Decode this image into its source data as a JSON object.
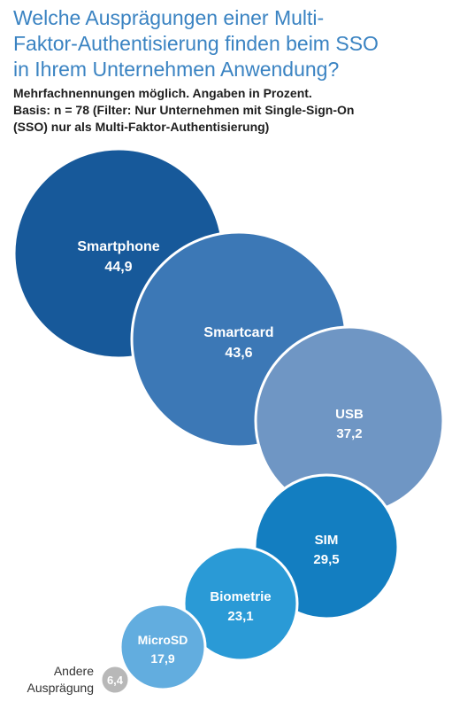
{
  "title_lines": [
    "Welche Ausprägungen einer Multi-",
    "Faktor-Authentisierung finden beim SSO",
    "in Ihrem Unternehmen Anwendung?"
  ],
  "subtitle_lines": [
    "Mehrfachnennungen möglich. Angaben in Prozent.",
    "Basis: n = 78 (Filter: Nur Unternehmen mit Single-Sign-On",
    "(SSO) nur als Multi-Faktor-Authentisierung)"
  ],
  "chart_data": {
    "type": "bubble",
    "title": "Welche Ausprägungen einer Multi-Faktor-Authentisierung finden beim SSO in Ihrem Unternehmen Anwendung?",
    "unit": "Prozent",
    "series": [
      {
        "label": "Smartphone",
        "value": 44.9,
        "value_text": "44,9",
        "color": "#17599a"
      },
      {
        "label": "Smartcard",
        "value": 43.6,
        "value_text": "43,6",
        "color": "#3c78b6"
      },
      {
        "label": "USB",
        "value": 37.2,
        "value_text": "37,2",
        "color": "#6f96c4"
      },
      {
        "label": "SIM",
        "value": 29.5,
        "value_text": "29,5",
        "color": "#137ec1"
      },
      {
        "label": "Biometrie",
        "value": 23.1,
        "value_text": "23,1",
        "color": "#2a9ad6"
      },
      {
        "label": "MicroSD",
        "value": 17.9,
        "value_text": "17,9",
        "color": "#62addf"
      },
      {
        "label": "Andere Ausprägung",
        "value": 6.4,
        "value_text": "6,4",
        "color": "#b8b8b8",
        "label_lines": [
          "Andere",
          "Ausprägung"
        ]
      }
    ]
  }
}
